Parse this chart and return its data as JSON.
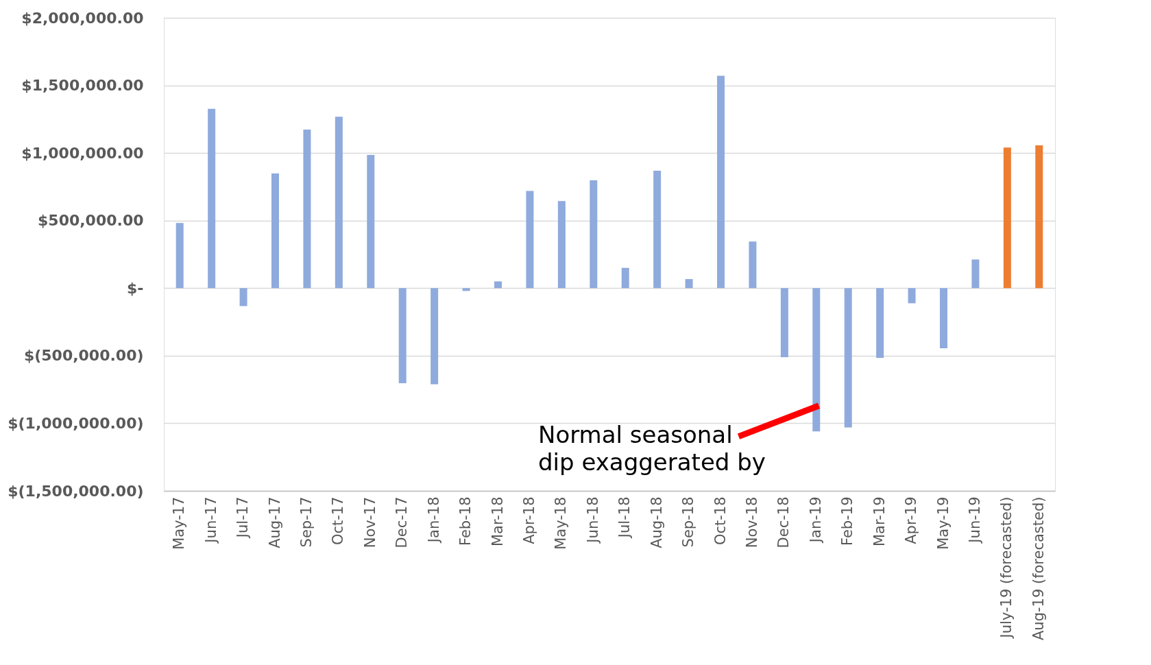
{
  "chart_data": {
    "type": "bar",
    "categories": [
      "May-17",
      "Jun-17",
      "Jul-17",
      "Aug-17",
      "Sep-17",
      "Oct-17",
      "Nov-17",
      "Dec-17",
      "Jan-18",
      "Feb-18",
      "Mar-18",
      "Apr-18",
      "May-18",
      "Jun-18",
      "Jul-18",
      "Aug-18",
      "Sep-18",
      "Oct-18",
      "Nov-18",
      "Dec-18",
      "Jan-19",
      "Feb-19",
      "Mar-19",
      "Apr-19",
      "May-19",
      "Jun-19",
      "July-19 (forecasted)",
      "Aug-19 (forecasted)"
    ],
    "values": [
      482000,
      1326000,
      -133000,
      848000,
      1173000,
      1268000,
      985000,
      -703000,
      -711000,
      -21000,
      50000,
      719000,
      644000,
      798000,
      150000,
      869000,
      67000,
      1572000,
      345000,
      -511000,
      -1060000,
      -1031000,
      -516000,
      -112000,
      -445000,
      212000,
      1040000,
      1056000
    ],
    "colors": [
      "#8faadc",
      "#8faadc",
      "#8faadc",
      "#8faadc",
      "#8faadc",
      "#8faadc",
      "#8faadc",
      "#8faadc",
      "#8faadc",
      "#8faadc",
      "#8faadc",
      "#8faadc",
      "#8faadc",
      "#8faadc",
      "#8faadc",
      "#8faadc",
      "#8faadc",
      "#8faadc",
      "#8faadc",
      "#8faadc",
      "#8faadc",
      "#8faadc",
      "#8faadc",
      "#8faadc",
      "#8faadc",
      "#8faadc",
      "#ed7d31",
      "#ed7d31"
    ],
    "ylim": [
      -1500000,
      2000000
    ],
    "yticks": [
      {
        "value": -1500000,
        "label": "$(1,500,000.00)"
      },
      {
        "value": -1000000,
        "label": "$(1,000,000.00)"
      },
      {
        "value": -500000,
        "label": "$(500,000.00)"
      },
      {
        "value": 0,
        "label": "$-"
      },
      {
        "value": 500000,
        "label": "$500,000.00"
      },
      {
        "value": 1000000,
        "label": "$1,000,000.00"
      },
      {
        "value": 1500000,
        "label": "$1,500,000.00"
      },
      {
        "value": 2000000,
        "label": "$2,000,000.00"
      }
    ],
    "grid": "y",
    "annotations": [
      "Normal seasonal dip exaggerated by"
    ]
  }
}
